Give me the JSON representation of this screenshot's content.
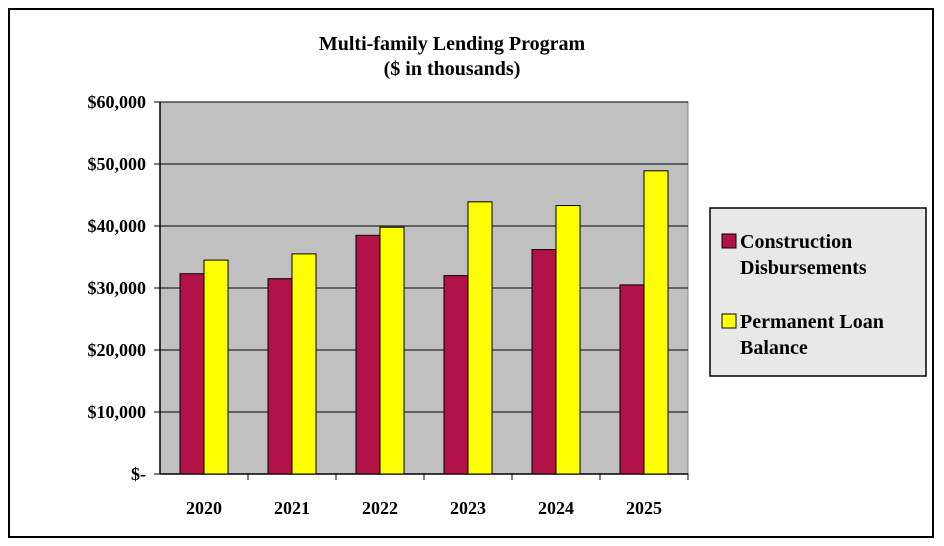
{
  "colors": {
    "plot_bg": "#c0c0c0",
    "chart_bg": "#ffffff",
    "legend_bg": "#e8e8e8",
    "series_1": "#b2124a",
    "series_2": "#ffff00"
  },
  "chart_data": {
    "type": "bar",
    "title": "Multi-family  Lending Program",
    "subtitle": "($ in thousands)",
    "xlabel": "",
    "ylabel": "",
    "categories": [
      "2020",
      "2021",
      "2022",
      "2023",
      "2024",
      "2025"
    ],
    "ylim": [
      0,
      60000
    ],
    "yticks": [
      {
        "value": 0,
        "label": "$-"
      },
      {
        "value": 10000,
        "label": "$10,000"
      },
      {
        "value": 20000,
        "label": "$20,000"
      },
      {
        "value": 30000,
        "label": "$30,000"
      },
      {
        "value": 40000,
        "label": "$40,000"
      },
      {
        "value": 50000,
        "label": "$50,000"
      },
      {
        "value": 60000,
        "label": "$60,000"
      }
    ],
    "grid": true,
    "legend_position": "right",
    "series": [
      {
        "name": "Construction Disbursements",
        "legend_lines": [
          "Construction",
          "Disbursements"
        ],
        "values": [
          32300,
          31500,
          38500,
          32000,
          36200,
          30500
        ]
      },
      {
        "name": "Permanent Loan Balance",
        "legend_lines": [
          "Permanent Loan",
          "Balance"
        ],
        "values": [
          34500,
          35500,
          39800,
          43900,
          43300,
          48900
        ]
      }
    ]
  }
}
